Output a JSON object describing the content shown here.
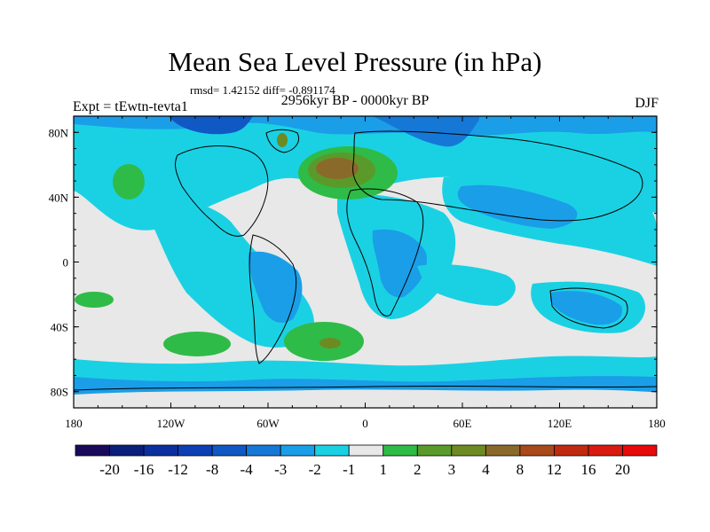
{
  "title": "Mean Sea Level Pressure (in hPa)",
  "stats": "rmsd= 1.42152 diff= -0.891174",
  "period": "2956kyr BP - 0000kyr BP",
  "experiment": "Expt = tEwtn-tevta1",
  "season": "DJF",
  "colors": {
    "background": "#e8e8e8",
    "cyan": "#1ad1e3",
    "light_blue": "#1a9ee8",
    "mid_blue": "#1578d6",
    "green": "#3cb84a",
    "olive": "#7a9b2e",
    "brown": "#8a6a2a"
  },
  "chart_data": {
    "type": "heatmap",
    "map_projection": "cylindrical-equidistant",
    "lon_range": [
      -180,
      180
    ],
    "lat_range": [
      -90,
      90
    ],
    "lon_ticks": [
      "180",
      "120W",
      "60W",
      "0",
      "60E",
      "120E",
      "180"
    ],
    "lat_ticks": [
      "80N",
      "40N",
      "0",
      "40S",
      "80S"
    ],
    "colorbar": {
      "levels": [
        "-20",
        "-16",
        "-12",
        "-8",
        "-4",
        "-3",
        "-2",
        "-1",
        "1",
        "2",
        "3",
        "4",
        "8",
        "12",
        "16",
        "20"
      ],
      "colors": [
        "#1a0a5c",
        "#0a1f7a",
        "#0b2f9e",
        "#0d40b5",
        "#1058c4",
        "#1578d6",
        "#1a9ee8",
        "#1ad1e3",
        "#e8e8e8",
        "#2fbb47",
        "#5a9a2a",
        "#6e8a22",
        "#8a6a2a",
        "#a84a1a",
        "#c02a10",
        "#d81a10",
        "#e80a0a"
      ]
    }
  }
}
